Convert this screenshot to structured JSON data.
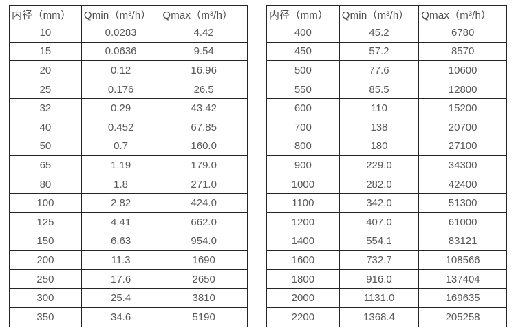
{
  "page": {
    "background": "#ffffff",
    "text_color": "#595959",
    "border_color": "#262626"
  },
  "tables": [
    {
      "name": "small-diameters",
      "headers": [
        "内径（mm）",
        "Qmin（m³/h）",
        "Qmax（m³/h）"
      ],
      "rows": [
        [
          "10",
          "0.0283",
          "4.42"
        ],
        [
          "15",
          "0.0636",
          "9.54"
        ],
        [
          "20",
          "0.12",
          "16.96"
        ],
        [
          "25",
          "0.176",
          "26.5"
        ],
        [
          "32",
          "0.29",
          "43.42"
        ],
        [
          "40",
          "0.452",
          "67.85"
        ],
        [
          "50",
          "0.7",
          "160.0"
        ],
        [
          "65",
          "1.19",
          "179.0"
        ],
        [
          "80",
          "1.8",
          "271.0"
        ],
        [
          "100",
          "2.82",
          "424.0"
        ],
        [
          "125",
          "4.41",
          "662.0"
        ],
        [
          "150",
          "6.63",
          "954.0"
        ],
        [
          "200",
          "11.3",
          "1690"
        ],
        [
          "250",
          "17.6",
          "2650"
        ],
        [
          "300",
          "25.4",
          "3810"
        ],
        [
          "350",
          "34.6",
          "5190"
        ]
      ]
    },
    {
      "name": "large-diameters",
      "headers": [
        "内径（mm）",
        "Qmin（m³/h）",
        "Qmax（m³/h）"
      ],
      "rows": [
        [
          "400",
          "45.2",
          "6780"
        ],
        [
          "450",
          "57.2",
          "8570"
        ],
        [
          "500",
          "77.6",
          "10600"
        ],
        [
          "550",
          "85.5",
          "12800"
        ],
        [
          "600",
          "110",
          "15200"
        ],
        [
          "700",
          "138",
          "20700"
        ],
        [
          "800",
          "180",
          "27100"
        ],
        [
          "900",
          "229.0",
          "34300"
        ],
        [
          "1000",
          "282.0",
          "42400"
        ],
        [
          "1100",
          "342.0",
          "51300"
        ],
        [
          "1200",
          "407.0",
          "61000"
        ],
        [
          "1400",
          "554.1",
          "83121"
        ],
        [
          "1600",
          "732.7",
          "108566"
        ],
        [
          "1800",
          "916.0",
          "137404"
        ],
        [
          "2000",
          "1131.0",
          "169635"
        ],
        [
          "2200",
          "1368.4",
          "205258"
        ]
      ]
    }
  ]
}
